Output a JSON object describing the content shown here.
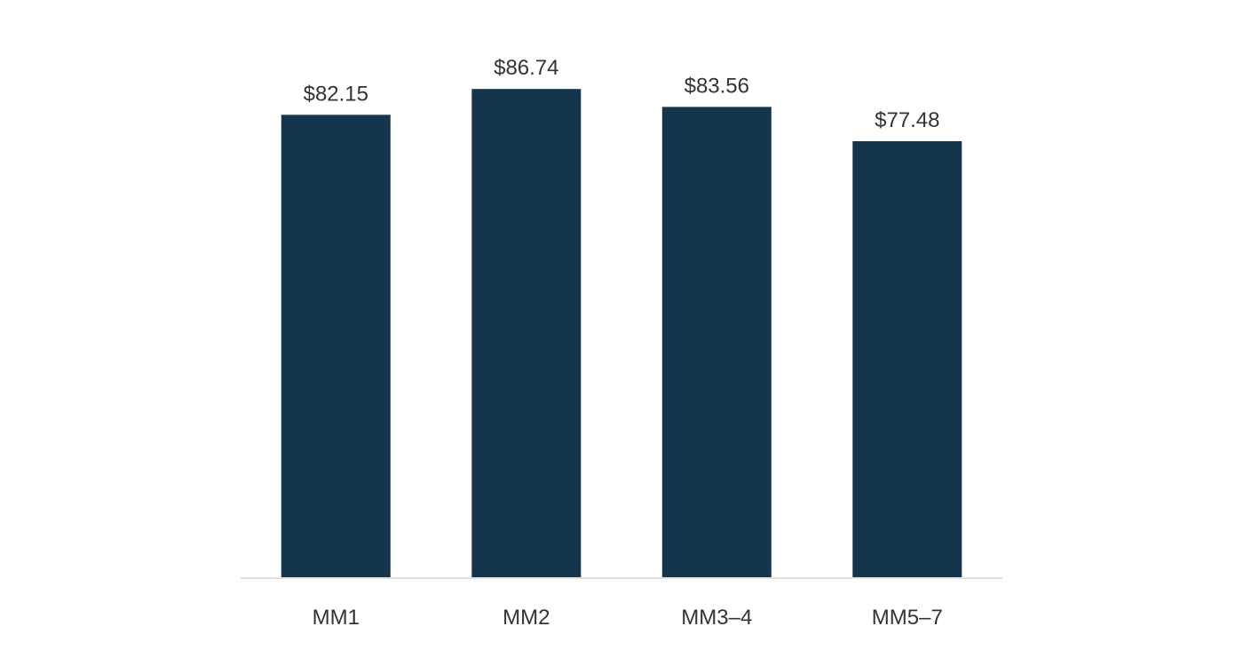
{
  "chart_data": {
    "type": "bar",
    "categories": [
      "MM1",
      "MM2",
      "MM3–4",
      "MM5–7"
    ],
    "values": [
      82.15,
      86.74,
      83.56,
      77.48
    ],
    "data_labels": [
      "$82.15",
      "$86.74",
      "$83.56",
      "$77.48"
    ],
    "title": "",
    "xlabel": "",
    "ylabel": "",
    "ylim": [
      0,
      100
    ],
    "grid": false,
    "legend": "none",
    "bar_color": "#15354d",
    "axis_color": "#e0e0e0",
    "text_color": "#333333"
  }
}
